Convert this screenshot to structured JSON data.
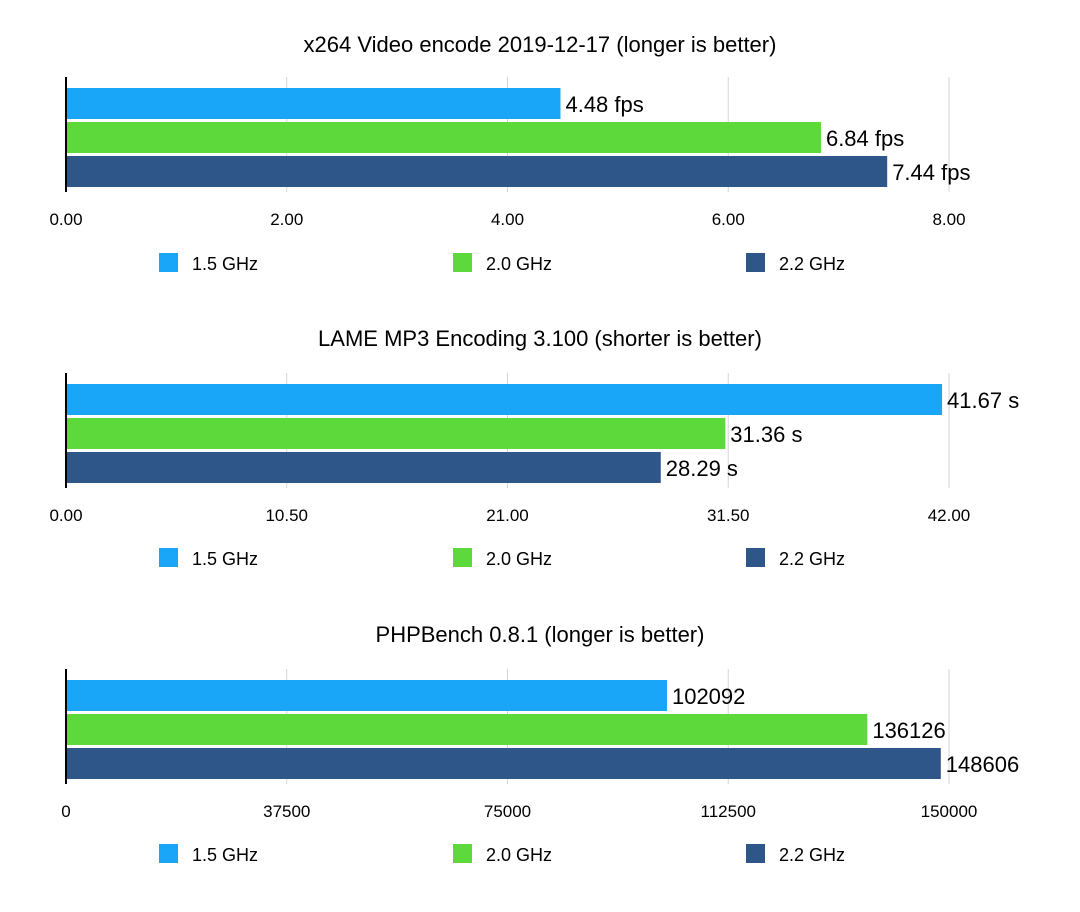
{
  "chart_data": [
    {
      "type": "bar",
      "orientation": "horizontal",
      "title": "x264 Video encode 2019-12-17 (longer is better)",
      "xlim": [
        0,
        8
      ],
      "ticks": [
        "0.00",
        "2.00",
        "4.00",
        "6.00",
        "8.00"
      ],
      "tick_values": [
        0,
        2,
        4,
        6,
        8
      ],
      "grid": true,
      "legend": "bottom",
      "series": [
        {
          "name": "1.5 GHz",
          "value": 4.48,
          "label": "4.48 fps",
          "color": "#1aa6f8"
        },
        {
          "name": "2.0 GHz",
          "value": 6.84,
          "label": "6.84 fps",
          "color": "#5ed93b"
        },
        {
          "name": "2.2 GHz",
          "value": 7.44,
          "label": "7.44 fps",
          "color": "#2e5689"
        }
      ]
    },
    {
      "type": "bar",
      "orientation": "horizontal",
      "title": "LAME MP3 Encoding 3.100 (shorter is better)",
      "xlim": [
        0,
        42
      ],
      "ticks": [
        "0.00",
        "10.50",
        "21.00",
        "31.50",
        "42.00"
      ],
      "tick_values": [
        0,
        10.5,
        21,
        31.5,
        42
      ],
      "grid": true,
      "legend": "bottom",
      "series": [
        {
          "name": "1.5 GHz",
          "value": 41.67,
          "label": "41.67 s",
          "color": "#1aa6f8"
        },
        {
          "name": "2.0 GHz",
          "value": 31.36,
          "label": "31.36 s",
          "color": "#5ed93b"
        },
        {
          "name": "2.2 GHz",
          "value": 28.29,
          "label": "28.29 s",
          "color": "#2e5689"
        }
      ]
    },
    {
      "type": "bar",
      "orientation": "horizontal",
      "title": "PHPBench 0.8.1 (longer is better)",
      "xlim": [
        0,
        150000
      ],
      "ticks": [
        "0",
        "37500",
        "75000",
        "112500",
        "150000"
      ],
      "tick_values": [
        0,
        37500,
        75000,
        112500,
        150000
      ],
      "grid": true,
      "legend": "bottom",
      "series": [
        {
          "name": "1.5 GHz",
          "value": 102092,
          "label": "102092",
          "color": "#1aa6f8"
        },
        {
          "name": "2.0 GHz",
          "value": 136126,
          "label": "136126",
          "color": "#5ed93b"
        },
        {
          "name": "2.2 GHz",
          "value": 148606,
          "label": "148606",
          "color": "#2e5689"
        }
      ]
    }
  ],
  "colors": {
    "grid": "#d6d6d6",
    "axis": "#000000",
    "text": "#000000"
  }
}
